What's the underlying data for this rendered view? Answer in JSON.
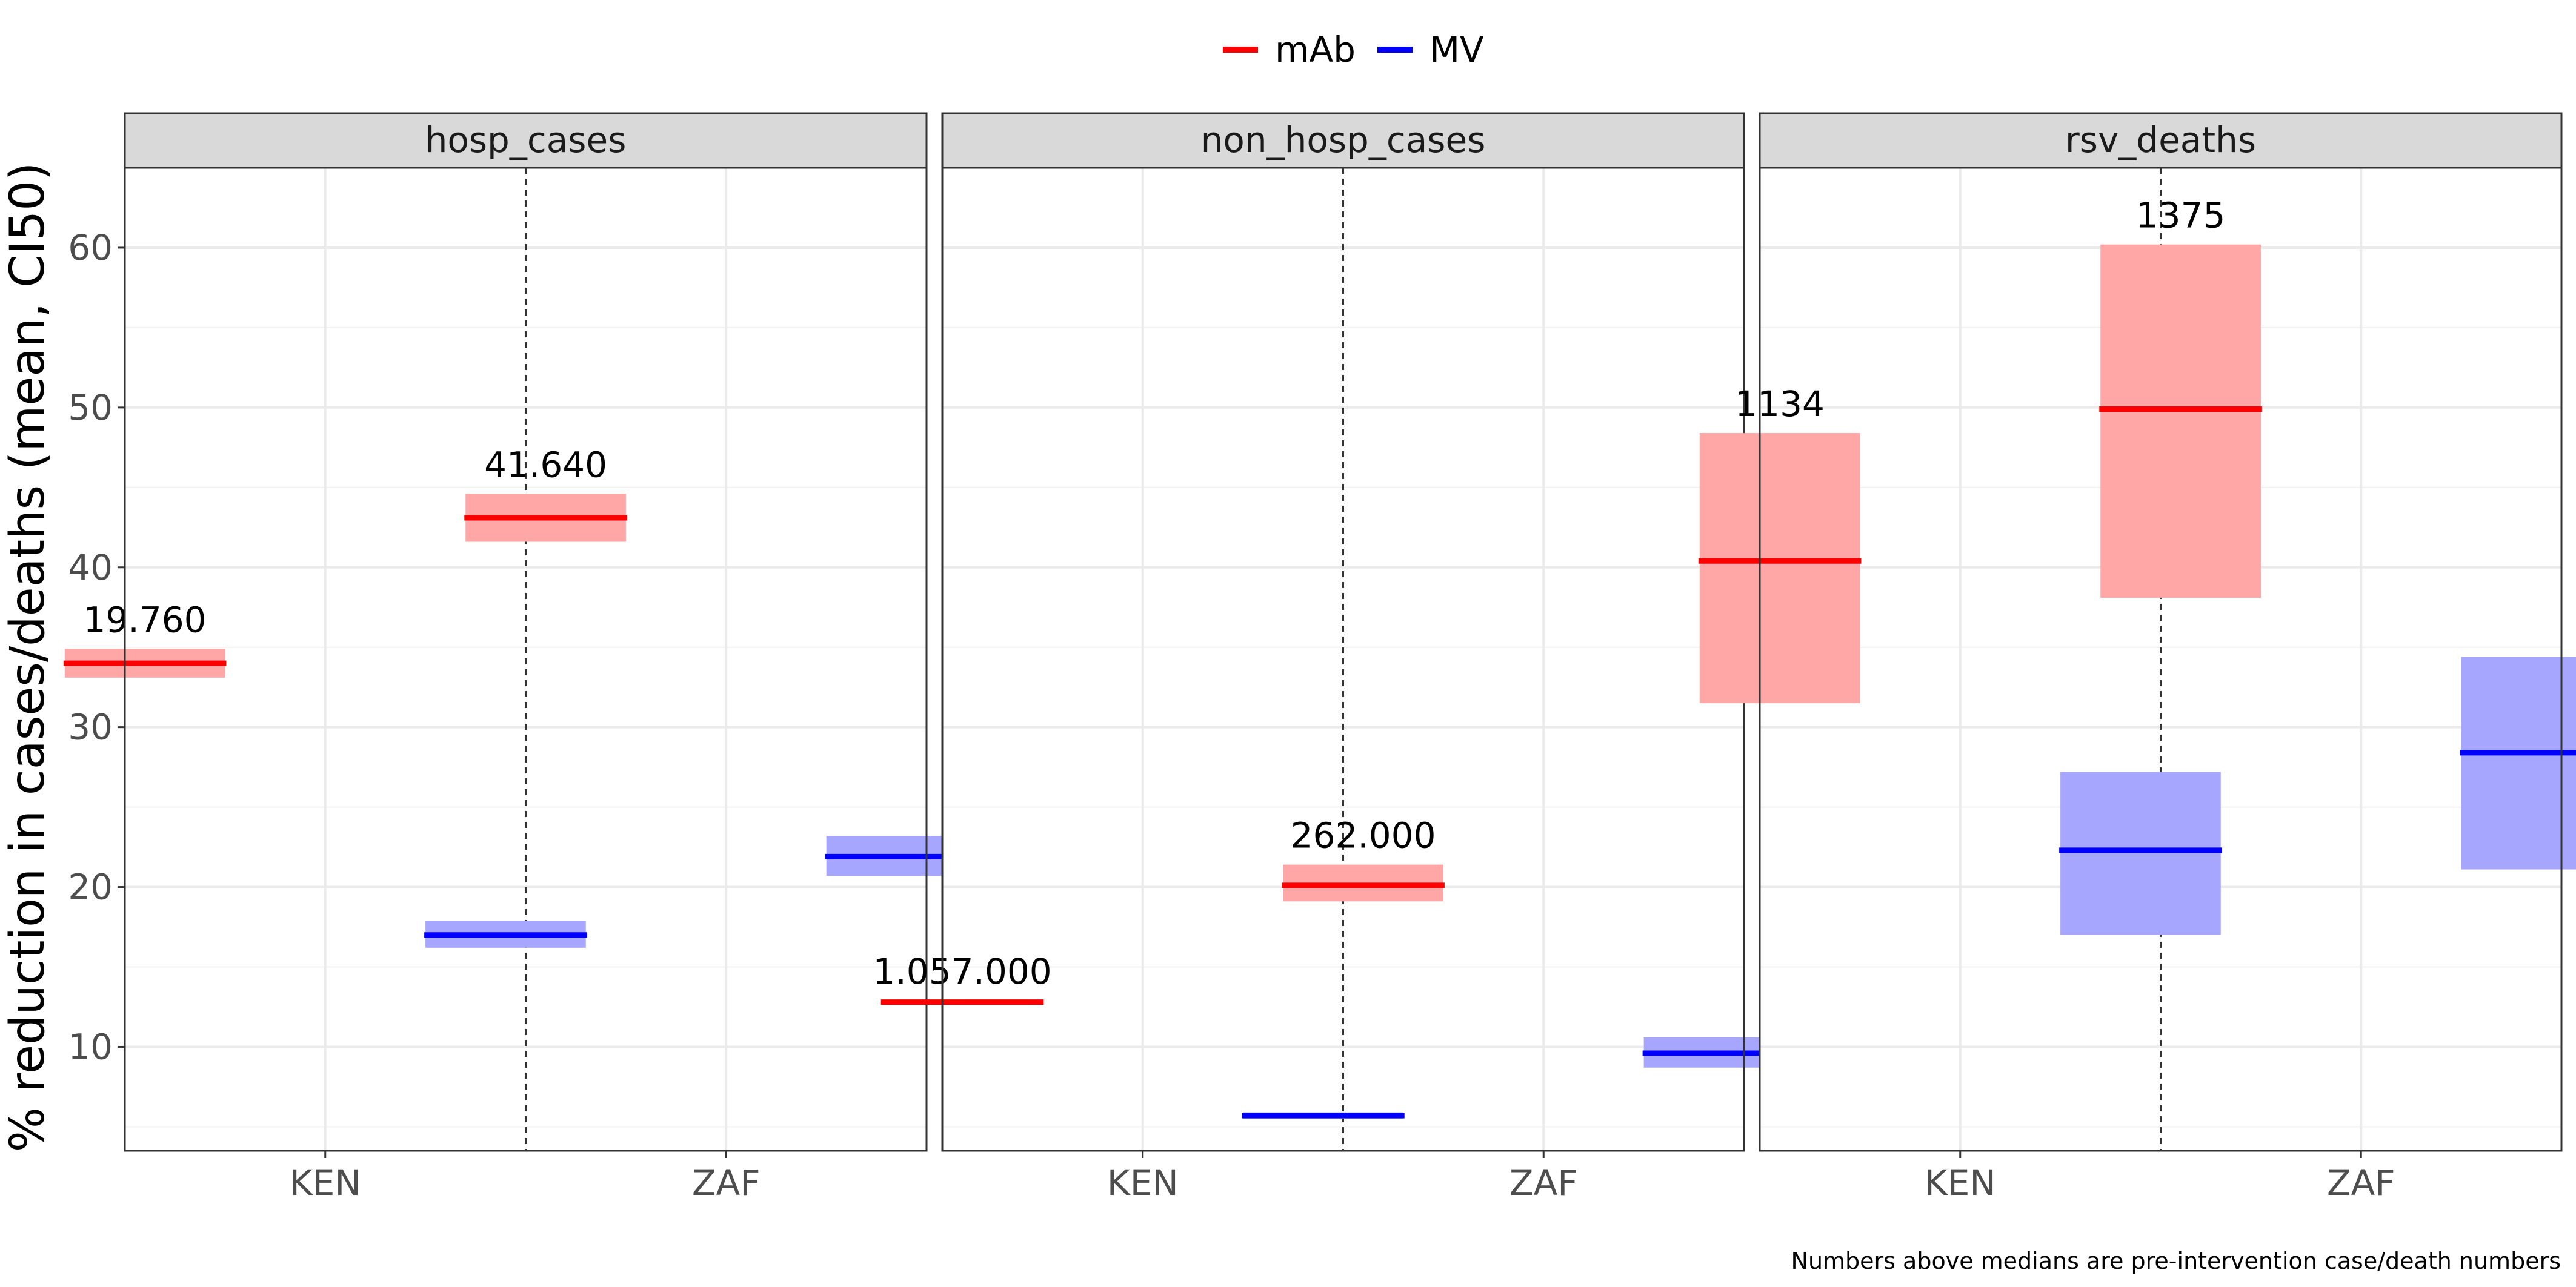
{
  "chart_data": {
    "type": "crossbar",
    "ylabel": "% reduction in cases/deaths (mean, CI50)",
    "ylim": [
      3.5,
      65
    ],
    "yticks": [
      10,
      20,
      30,
      40,
      50,
      60
    ],
    "categories": [
      "KEN",
      "ZAF"
    ],
    "legend": {
      "position": "top",
      "entries": [
        {
          "name": "mAb",
          "color": "#ff0000",
          "fill": "#ffa6a6"
        },
        {
          "name": "MV",
          "color": "#0000ff",
          "fill": "#a6a6ff"
        }
      ]
    },
    "grid": true,
    "caption": "Numbers above medians are pre-intervention case/death numbers",
    "panels": [
      {
        "title": "hosp_cases",
        "bars": [
          {
            "category": "KEN",
            "series": "mAb",
            "mean": 34.0,
            "low": 33.1,
            "high": 34.9,
            "label": "19.760"
          },
          {
            "category": "KEN",
            "series": "MV",
            "mean": 17.0,
            "low": 16.2,
            "high": 17.9
          },
          {
            "category": "ZAF",
            "series": "mAb",
            "mean": 43.1,
            "low": 41.6,
            "high": 44.6,
            "label": "41.640"
          },
          {
            "category": "ZAF",
            "series": "MV",
            "mean": 21.9,
            "low": 20.7,
            "high": 23.2
          }
        ]
      },
      {
        "title": "non_hosp_cases",
        "bars": [
          {
            "category": "KEN",
            "series": "mAb",
            "mean": 12.8,
            "low": 12.7,
            "high": 12.9,
            "label": "1.057.000"
          },
          {
            "category": "KEN",
            "series": "MV",
            "mean": 5.7,
            "low": 5.5,
            "high": 5.9
          },
          {
            "category": "ZAF",
            "series": "mAb",
            "mean": 20.1,
            "low": 19.1,
            "high": 21.4,
            "label": "262.000"
          },
          {
            "category": "ZAF",
            "series": "MV",
            "mean": 9.6,
            "low": 8.7,
            "high": 10.6
          }
        ]
      },
      {
        "title": "rsv_deaths",
        "bars": [
          {
            "category": "KEN",
            "series": "mAb",
            "mean": 40.4,
            "low": 31.5,
            "high": 48.4,
            "label": "1134"
          },
          {
            "category": "KEN",
            "series": "MV",
            "mean": 22.3,
            "low": 17.0,
            "high": 27.2
          },
          {
            "category": "ZAF",
            "series": "mAb",
            "mean": 49.9,
            "low": 38.1,
            "high": 60.2,
            "label": "1375"
          },
          {
            "category": "ZAF",
            "series": "MV",
            "mean": 28.4,
            "low": 21.1,
            "high": 34.4
          }
        ]
      }
    ]
  }
}
